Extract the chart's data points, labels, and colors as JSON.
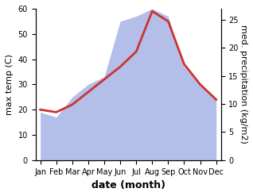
{
  "months": [
    "Jan",
    "Feb",
    "Mar",
    "Apr",
    "May",
    "Jun",
    "Jul",
    "Aug",
    "Sep",
    "Oct",
    "Nov",
    "Dec"
  ],
  "month_positions": [
    0,
    1,
    2,
    3,
    4,
    5,
    6,
    7,
    8,
    9,
    10,
    11
  ],
  "temperature": [
    20,
    19,
    22,
    27,
    32,
    37,
    43,
    59,
    55,
    38,
    30,
    24
  ],
  "precipitation_scaled": [
    19,
    17,
    25,
    30,
    33,
    55,
    57,
    60,
    57,
    37,
    30,
    24
  ],
  "temp_color": "#cc3333",
  "precip_color": "#b3bfe8",
  "temp_linewidth": 2.0,
  "temp_ylim": [
    0,
    60
  ],
  "temp_yticks": [
    0,
    10,
    20,
    30,
    40,
    50,
    60
  ],
  "precip_ylim": [
    0,
    27
  ],
  "precip_yticks": [
    0,
    5,
    10,
    15,
    20,
    25
  ],
  "ylabel_left": "max temp (C)",
  "ylabel_right": "med. precipitation (kg/m2)",
  "xlabel": "date (month)",
  "xlabel_fontweight": "bold",
  "ylabel_fontsize": 8,
  "xlabel_fontsize": 9,
  "tick_fontsize": 7,
  "background_color": "#ffffff"
}
